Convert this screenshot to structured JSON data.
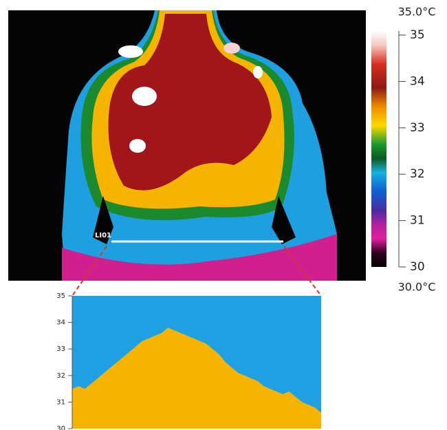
{
  "thermal_image": {
    "label": "LI01"
  },
  "colorbar": {
    "max_label": "35.0°C",
    "min_label": "30.0°C",
    "ylim": [
      30,
      35
    ],
    "yticks": [
      30,
      31,
      32,
      33,
      34,
      35
    ]
  },
  "chart_data": {
    "type": "area",
    "ylim": [
      30,
      35
    ],
    "yticks": [
      30,
      31,
      32,
      33,
      34,
      35
    ],
    "color": "#f5b400",
    "background": "#1ea0e2",
    "values": [
      31.5,
      31.6,
      31.5,
      31.7,
      31.9,
      32.1,
      32.3,
      32.5,
      32.7,
      32.9,
      33.1,
      33.3,
      33.4,
      33.5,
      33.6,
      33.8,
      33.7,
      33.6,
      33.5,
      33.4,
      33.3,
      33.2,
      33.0,
      32.8,
      32.5,
      32.3,
      32.1,
      32.0,
      31.9,
      31.8,
      31.6,
      31.5,
      31.4,
      31.3,
      31.4,
      31.2,
      31.0,
      30.9,
      30.8,
      30.6
    ]
  }
}
